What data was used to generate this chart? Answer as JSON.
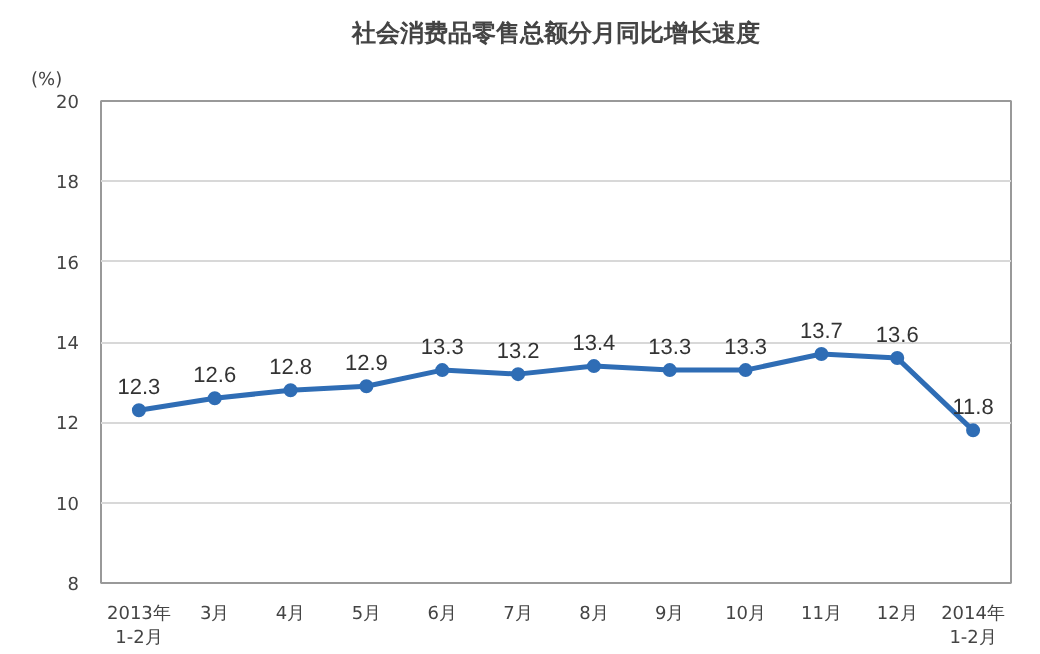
{
  "chart_data": {
    "type": "line",
    "title": "社会消费品零售总额分月同比增长速度",
    "ylabel": "(%)",
    "categories": [
      "2013年\n1-2月",
      "3月",
      "4月",
      "5月",
      "6月",
      "7月",
      "8月",
      "9月",
      "10月",
      "11月",
      "12月",
      "2014年\n1-2月"
    ],
    "series": [
      {
        "color": "#2f6db5",
        "values": [
          12.3,
          12.6,
          12.8,
          12.9,
          13.3,
          13.2,
          13.4,
          13.3,
          13.3,
          13.7,
          13.6,
          11.8
        ]
      }
    ],
    "ylim": [
      8,
      20
    ],
    "yticks": [
      8,
      10,
      12,
      14,
      16,
      18,
      20
    ],
    "grid": "y",
    "marker": "circle",
    "line_style": "solid",
    "data_labels": true
  }
}
